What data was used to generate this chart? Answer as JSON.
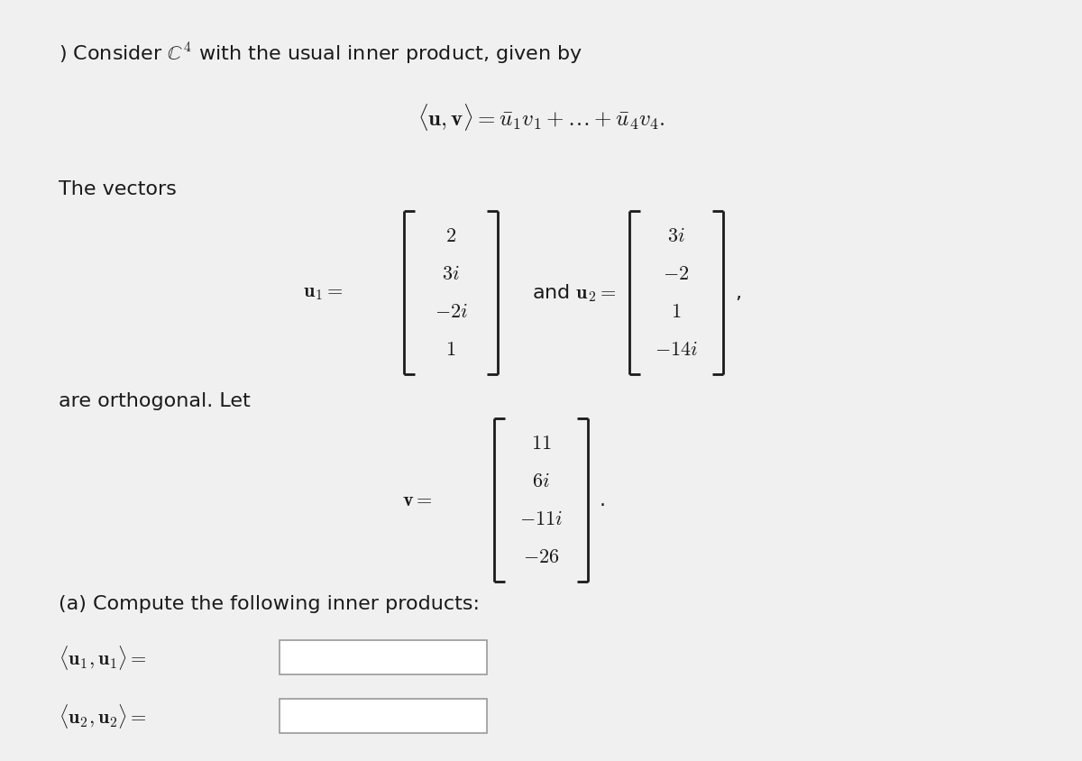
{
  "background_color": "#f0f0f0",
  "title_line": ") Consider $\\mathbb{C}^4$ with the usual inner product, given by",
  "inner_product_formula": "$\\langle \\mathbf{u}, \\mathbf{v} \\rangle = \\bar{u}_1 v_1 + \\ldots + \\bar{u}_4 v_4.$",
  "vectors_intro": "The vectors",
  "u1_label": "$\\mathbf{u}_1 =$",
  "u1_entries": [
    "$2$",
    "$3i$",
    "$-2i$",
    "$1$"
  ],
  "and_text": "and $\\mathbf{u}_2 =$",
  "u2_entries": [
    "$3i$",
    "$-2$",
    "$1$",
    "$-14i$"
  ],
  "comma_text": ",",
  "orthogonal_text": "are orthogonal. Let",
  "v_label": "$\\mathbf{v} =$",
  "v_entries": [
    "$11$",
    "$6i$",
    "$-11i$",
    "$-26$"
  ],
  "period_text": ".",
  "part_a_text": "(a) Compute the following inner products:",
  "ip1_label": "$\\langle \\mathbf{u}_1, \\mathbf{u}_1 \\rangle =$",
  "ip2_label": "$\\langle \\mathbf{u}_2, \\mathbf{u}_2 \\rangle =$",
  "text_color": "#1a1a1a",
  "box_color": "#ffffff",
  "box_edge_color": "#999999"
}
